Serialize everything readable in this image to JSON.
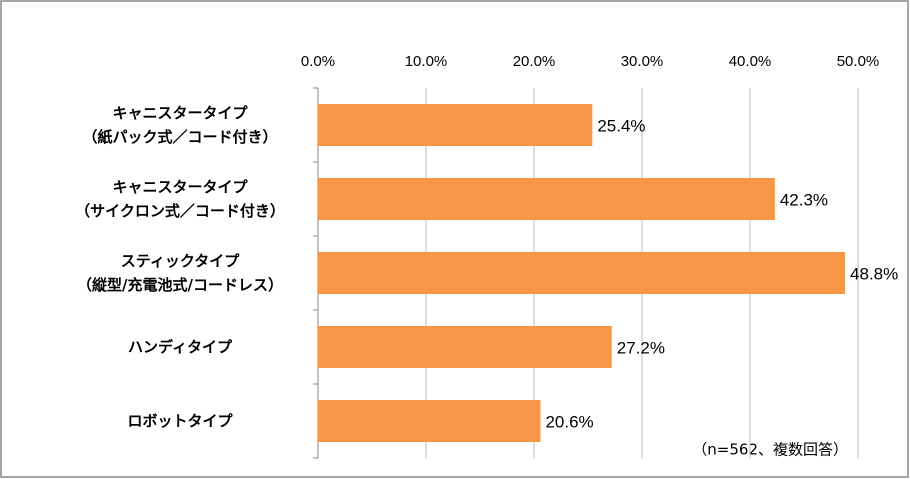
{
  "chart_data": {
    "type": "bar",
    "orientation": "horizontal",
    "categories": [
      [
        "キャニスタータイプ",
        "（紙パック式／コード付き）"
      ],
      [
        "キャニスタータイプ",
        "（サイクロン式／コード付き）"
      ],
      [
        "スティックタイプ",
        "（縦型/充電池式/コードレス）"
      ],
      [
        "ハンディタイプ"
      ],
      [
        "ロボットタイプ"
      ]
    ],
    "values": [
      25.4,
      42.3,
      48.8,
      27.2,
      20.6
    ],
    "value_labels": [
      "25.4%",
      "42.3%",
      "48.8%",
      "27.2%",
      "20.6%"
    ],
    "color": "#f79646",
    "xlim": [
      0,
      50
    ],
    "xticks": [
      {
        "value": 0,
        "label": "0.0%"
      },
      {
        "value": 10,
        "label": "10.0%"
      },
      {
        "value": 20,
        "label": "20.0%"
      },
      {
        "value": 30,
        "label": "30.0%"
      },
      {
        "value": 40,
        "label": "40.0%"
      },
      {
        "value": 50,
        "label": "50.0%"
      }
    ],
    "grid": true,
    "annotation": "（n=562、複数回答）"
  }
}
